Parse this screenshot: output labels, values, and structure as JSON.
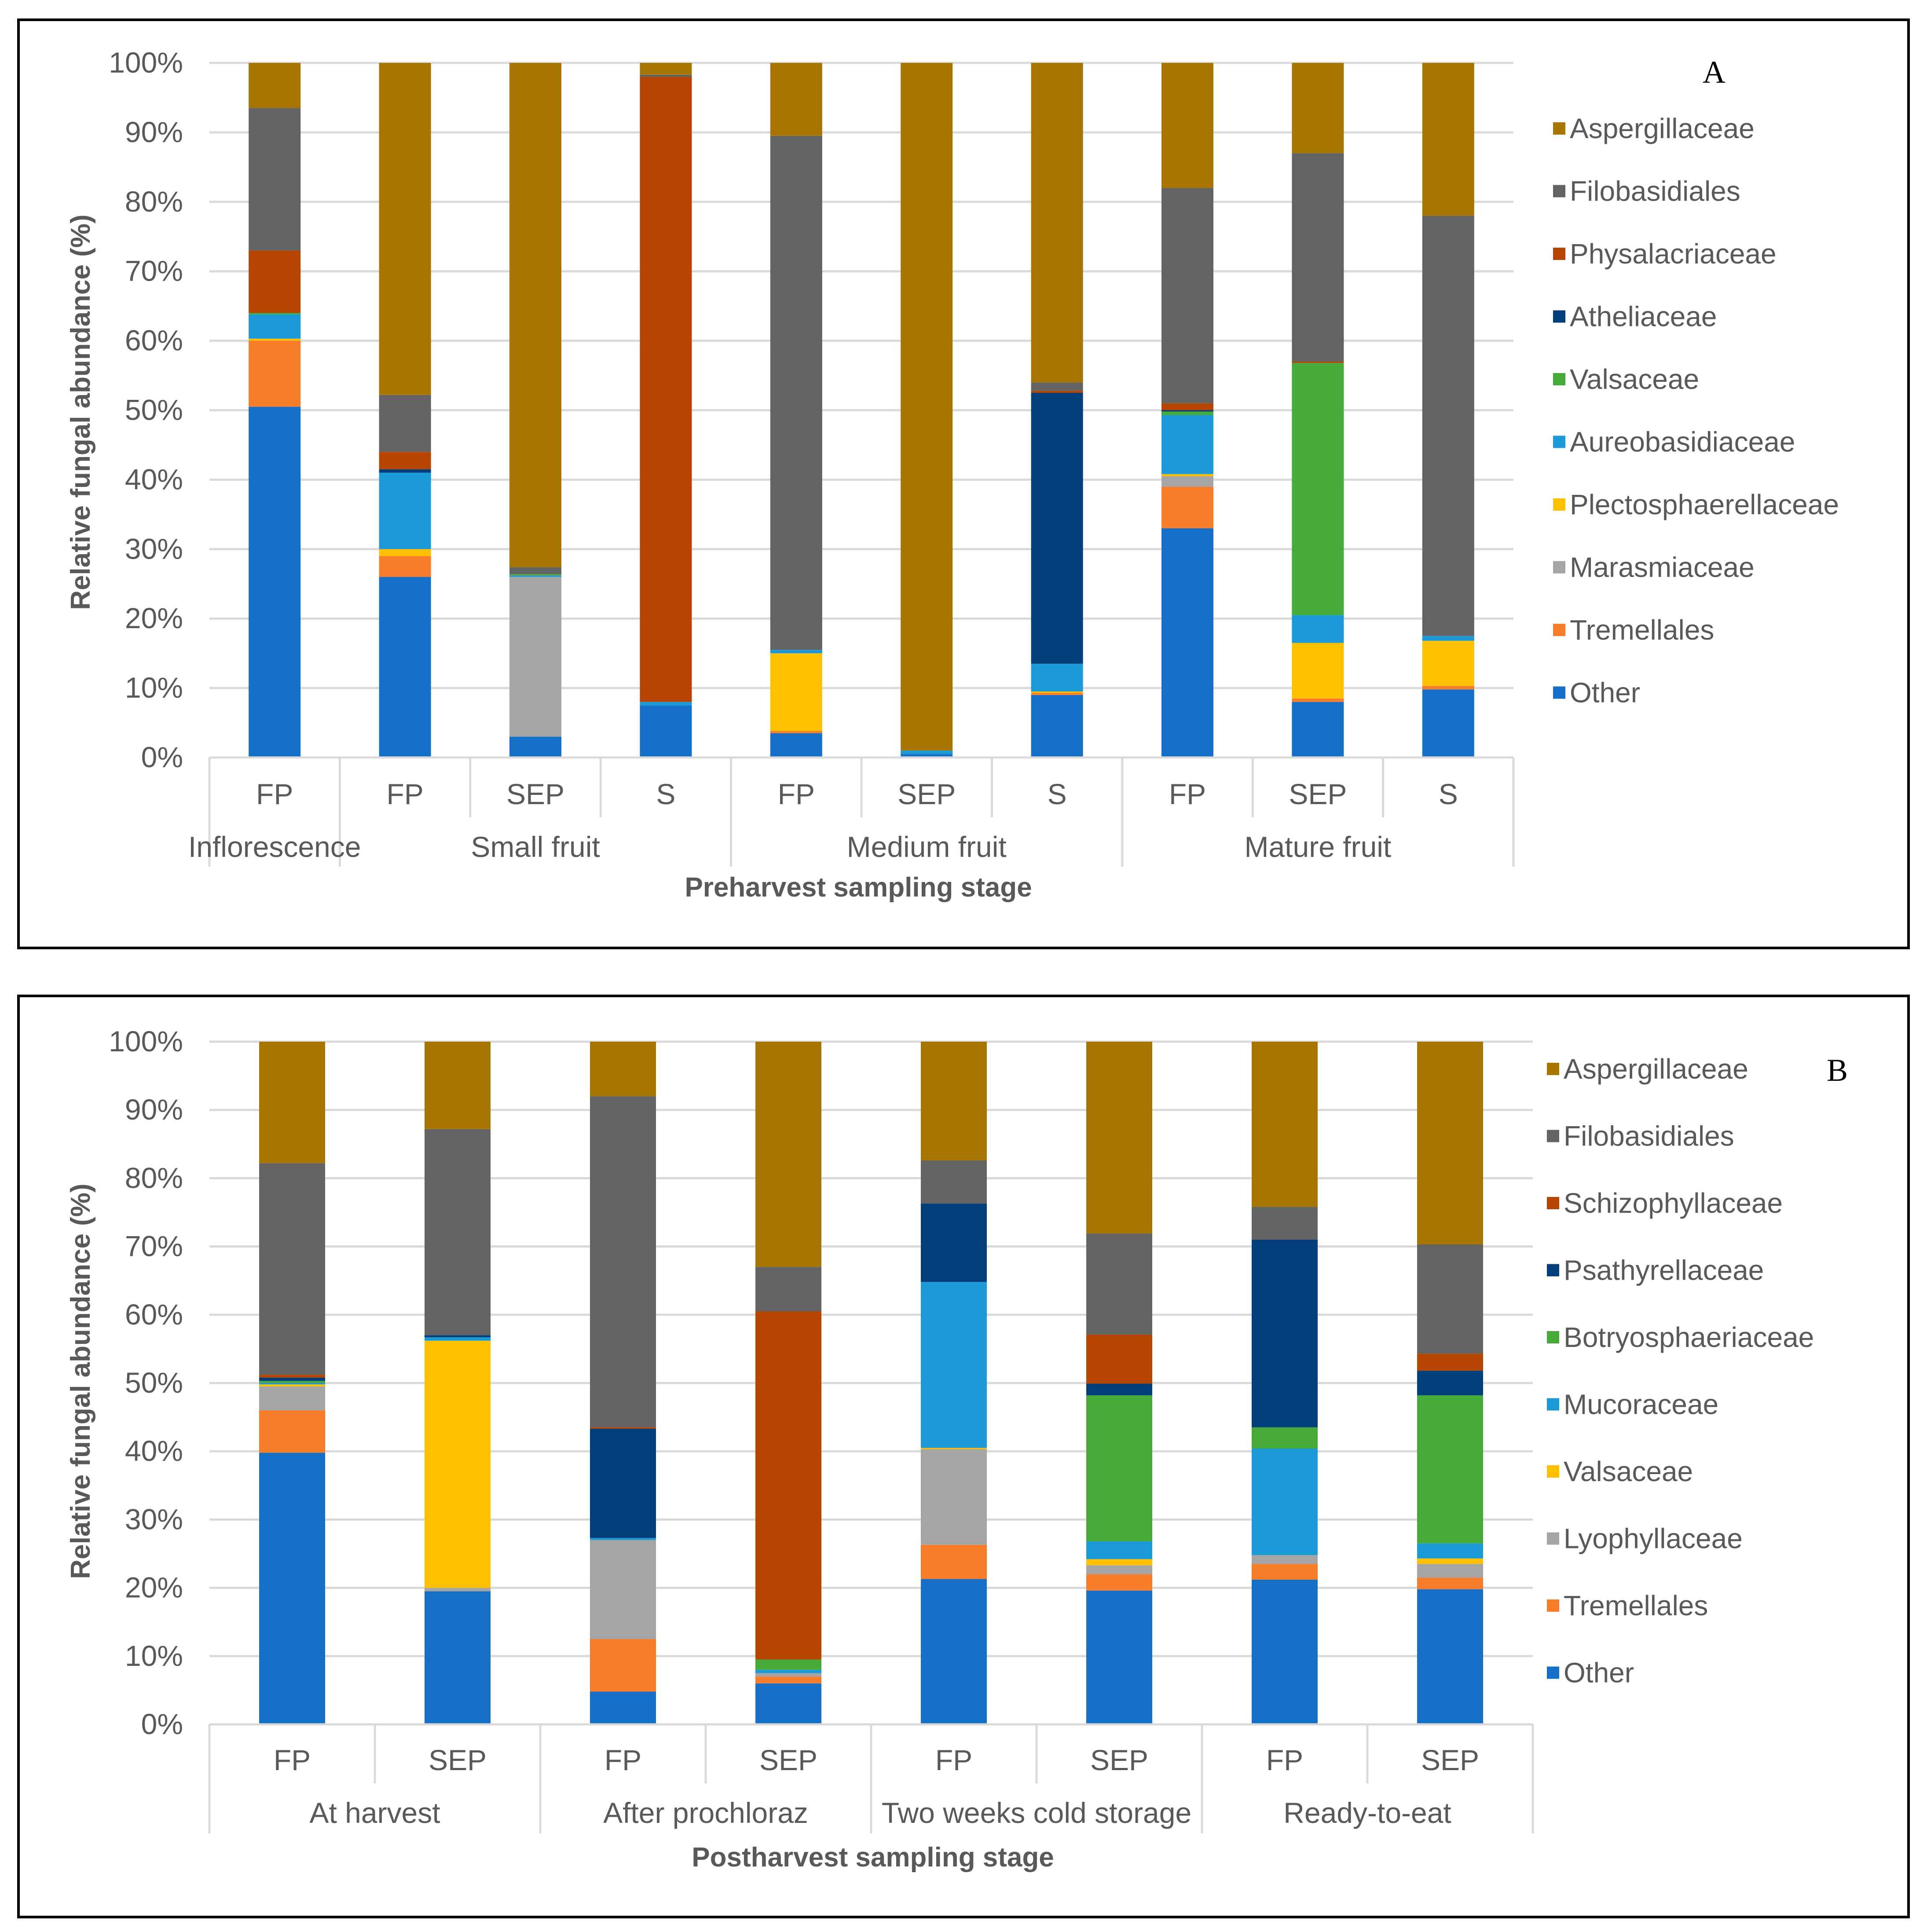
{
  "colors": {
    "Aspergillaceae": "#a67600",
    "Filobasidiales": "#636363",
    "Physalacriaceae": "#b54500",
    "Schizophyllaceae": "#b54500",
    "Atheliaceae": "#003f7a",
    "Psathyrellaceae": "#003f7a",
    "Valsaceae_A": "#46ab3a",
    "Botryosphaeriaceae": "#46ab3a",
    "Aureobasidiaceae": "#1c9ad8",
    "Mucoraceae": "#1c9ad8",
    "Plectosphaerellaceae": "#ffc000",
    "Valsaceae_B": "#ffc000",
    "Marasmiaceae": "#a5a5a5",
    "Lyophyllaceae": "#a5a5a5",
    "Tremellales": "#f87d2a",
    "Other": "#1670c8"
  },
  "chart_data": [
    {
      "type": "bar",
      "stacked": true,
      "panel_label": "A",
      "ylabel": "Relative fungal abundance (%)",
      "xlabel": "Preharvest sampling stage",
      "yticks": [
        "0%",
        "10%",
        "20%",
        "30%",
        "40%",
        "50%",
        "60%",
        "70%",
        "80%",
        "90%",
        "100%"
      ],
      "ylim": [
        0,
        100
      ],
      "categories": [
        "FP",
        "FP",
        "SEP",
        "S",
        "FP",
        "SEP",
        "S",
        "FP",
        "SEP",
        "S"
      ],
      "groups": [
        {
          "label": "Inflorescence",
          "count": 1
        },
        {
          "label": "Small fruit",
          "count": 3
        },
        {
          "label": "Medium fruit",
          "count": 3
        },
        {
          "label": "Mature fruit",
          "count": 3
        }
      ],
      "legend": [
        "Aspergillaceae",
        "Filobasidiales",
        "Physalacriaceae",
        "Atheliaceae",
        "Valsaceae",
        "Aureobasidiaceae",
        "Plectosphaerellaceae",
        "Marasmiaceae",
        "Tremellales",
        "Other"
      ],
      "legend_colors": [
        "#a67600",
        "#636363",
        "#b54500",
        "#003f7a",
        "#46ab3a",
        "#1c9ad8",
        "#ffc000",
        "#a5a5a5",
        "#f87d2a",
        "#1670c8"
      ],
      "series": [
        {
          "name": "Other",
          "values": [
            50.5,
            26,
            3,
            7.5,
            3.5,
            0.5,
            9,
            33,
            8,
            9.8
          ]
        },
        {
          "name": "Tremellales",
          "values": [
            9.5,
            3,
            0,
            0,
            0.3,
            0,
            0.3,
            6,
            0.5,
            0.5
          ]
        },
        {
          "name": "Marasmiaceae",
          "values": [
            0,
            0,
            23,
            0,
            0,
            0,
            0,
            1.5,
            0,
            0
          ]
        },
        {
          "name": "Plectosphaerellaceae",
          "values": [
            0.3,
            1,
            0,
            0,
            11.2,
            0,
            0.2,
            0.3,
            8,
            6.5
          ]
        },
        {
          "name": "Aureobasidiaceae",
          "values": [
            3.5,
            11,
            0.2,
            0.5,
            0.5,
            0.5,
            4,
            8.5,
            4,
            0.7
          ]
        },
        {
          "name": "Valsaceae",
          "values": [
            0.2,
            0,
            0.2,
            0,
            0,
            0,
            0,
            0.5,
            36.3,
            0
          ]
        },
        {
          "name": "Atheliaceae",
          "values": [
            0,
            0.5,
            0,
            0,
            0,
            0,
            39,
            0.2,
            0,
            0
          ]
        },
        {
          "name": "Physalacriaceae",
          "values": [
            9,
            2.5,
            0,
            90,
            0,
            0,
            0.3,
            1,
            0.2,
            0
          ]
        },
        {
          "name": "Filobasidiales",
          "values": [
            20.5,
            8.2,
            1,
            0.3,
            74,
            0,
            1.2,
            31,
            30,
            60.5
          ]
        },
        {
          "name": "Aspergillaceae",
          "values": [
            6.5,
            47.8,
            72.6,
            1.7,
            10.5,
            99,
            46,
            18,
            13,
            22
          ]
        }
      ]
    },
    {
      "type": "bar",
      "stacked": true,
      "panel_label": "B",
      "ylabel": "Relative fungal abundance (%)",
      "xlabel": "Postharvest sampling stage",
      "yticks": [
        "0%",
        "10%",
        "20%",
        "30%",
        "40%",
        "50%",
        "60%",
        "70%",
        "80%",
        "90%",
        "100%"
      ],
      "ylim": [
        0,
        100
      ],
      "categories": [
        "FP",
        "SEP",
        "FP",
        "SEP",
        "FP",
        "SEP",
        "FP",
        "SEP"
      ],
      "groups": [
        {
          "label": "At harvest",
          "count": 2
        },
        {
          "label": "After prochloraz",
          "count": 2
        },
        {
          "label": "Two weeks cold storage",
          "count": 2
        },
        {
          "label": "Ready-to-eat",
          "count": 2
        }
      ],
      "legend": [
        "Aspergillaceae",
        "Filobasidiales",
        "Schizophyllaceae",
        "Psathyrellaceae",
        "Botryosphaeriaceae",
        "Mucoraceae",
        "Valsaceae",
        "Lyophyllaceae",
        "Tremellales",
        "Other"
      ],
      "legend_colors": [
        "#a67600",
        "#636363",
        "#b54500",
        "#003f7a",
        "#46ab3a",
        "#1c9ad8",
        "#ffc000",
        "#a5a5a5",
        "#f87d2a",
        "#1670c8"
      ],
      "series": [
        {
          "name": "Other",
          "values": [
            39.8,
            19.5,
            4.8,
            6,
            21.3,
            19.6,
            21.2,
            19.8
          ]
        },
        {
          "name": "Tremellales",
          "values": [
            6.2,
            0,
            7.7,
            1,
            5,
            2.4,
            2.3,
            1.7
          ]
        },
        {
          "name": "Lyophyllaceae",
          "values": [
            3.5,
            0.5,
            14.5,
            0.5,
            14,
            1.3,
            1.3,
            2
          ]
        },
        {
          "name": "Valsaceae",
          "values": [
            0.3,
            36.2,
            0,
            0,
            0.2,
            0.9,
            0,
            0.8
          ]
        },
        {
          "name": "Mucoraceae",
          "values": [
            0.2,
            0.5,
            0.3,
            0.5,
            24.3,
            2.6,
            15.6,
            2.2
          ]
        },
        {
          "name": "Botryosphaeriaceae",
          "values": [
            0.3,
            0,
            0,
            1.5,
            0,
            21.4,
            3.1,
            21.7
          ]
        },
        {
          "name": "Psathyrellaceae",
          "values": [
            0.5,
            0.3,
            16,
            0,
            11.5,
            1.7,
            27.5,
            3.6
          ]
        },
        {
          "name": "Schizophyllaceae",
          "values": [
            0.4,
            0,
            0.2,
            51,
            0,
            7.2,
            0,
            2.5
          ]
        },
        {
          "name": "Filobasidiales",
          "values": [
            31,
            30.2,
            48.5,
            6.5,
            6.3,
            14.8,
            4.8,
            16
          ]
        },
        {
          "name": "Aspergillaceae",
          "values": [
            17.8,
            12.8,
            8,
            33,
            17.4,
            28.1,
            24.2,
            29.7
          ]
        }
      ]
    }
  ]
}
